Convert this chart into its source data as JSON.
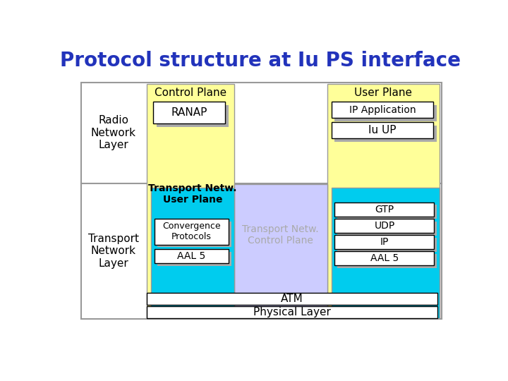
{
  "title": "Protocol structure at Iu PS interface",
  "title_color": "#2233BB",
  "title_fontsize": 20,
  "bg_color": "#FFFFFF",
  "colors": {
    "yellow": "#FFFF99",
    "cyan": "#00CCEE",
    "lavender": "#CCCCFF",
    "white": "#FFFFFF",
    "shadow": "#AAAAAA",
    "outer_border": "#999999",
    "inner_border": "#000000"
  },
  "labels": {
    "radio_network_layer": "Radio\nNetwork\nLayer",
    "transport_network_layer": "Transport\nNetwork\nLayer",
    "control_plane": "Control Plane",
    "user_plane": "User Plane",
    "ranap": "RANAP",
    "ip_application": "IP Application",
    "iu_up": "Iu UP",
    "transport_netw_user_plane": "Transport Netw.\nUser Plane",
    "transport_netw_control_plane": "Transport Netw.\nControl Plane",
    "convergence_protocols": "Convergence\nProtocols",
    "aal5_left": "AAL 5",
    "gtp": "GTP",
    "udp": "UDP",
    "ip": "IP",
    "aal5_right": "AAL 5",
    "atm": "ATM",
    "physical_layer": "Physical Layer"
  }
}
